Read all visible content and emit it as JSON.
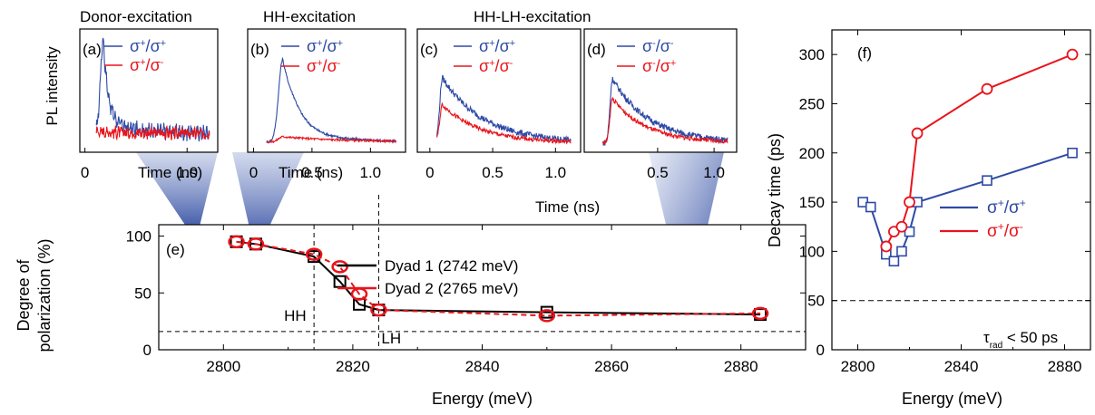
{
  "colors": {
    "blue": "#2e4aa5",
    "red": "#e8141b",
    "black": "#000000"
  },
  "panel_titles": [
    "Donor-excitation",
    "HH-excitation",
    "HH-LH-excitation"
  ],
  "pl_ylabel": "PL intensity",
  "chart_data": [
    {
      "id": "a",
      "type": "line",
      "panel_label": "(a)",
      "xlim": [
        -0.05,
        1.3
      ],
      "xticks": [
        {
          "v": 0,
          "t": "0"
        },
        {
          "v": 1.0,
          "t": "1.0"
        }
      ],
      "xlabel": "Time (ns)",
      "series": [
        {
          "name": "σ⁺/σ⁺",
          "color": "blue",
          "t_peak": 0.18,
          "amp": 0.93,
          "rise": 0.04,
          "decay": 0.05,
          "tail": 0.09,
          "tail_decay": 0.6,
          "base": 0.1,
          "noise": 0.05,
          "osc": 0.04
        },
        {
          "name": "σ⁺/σ⁻",
          "color": "red",
          "t_peak": 0.1,
          "amp": 0.03,
          "rise": 0.04,
          "decay": 1.0,
          "tail": 0,
          "tail_decay": 1,
          "base": 0.1,
          "noise": 0.05,
          "osc": 0.02
        }
      ]
    },
    {
      "id": "b",
      "type": "line",
      "panel_label": "(b)",
      "xlim": [
        -0.05,
        1.3
      ],
      "xticks": [
        {
          "v": 0,
          "t": "0"
        },
        {
          "v": 0.5,
          "t": "0.5"
        },
        {
          "v": 1.0,
          "t": "1.0"
        }
      ],
      "xlabel": "Time (ns)",
      "series": [
        {
          "name": "σ⁺/σ⁺",
          "color": "blue",
          "t_peak": 0.25,
          "amp": 0.8,
          "rise": 0.05,
          "decay": 0.12,
          "tail": 0.1,
          "tail_decay": 0.4,
          "base": 0.03,
          "noise": 0.012,
          "osc": 0
        },
        {
          "name": "σ⁺/σ⁻",
          "color": "red",
          "t_peak": 0.25,
          "amp": 0.05,
          "rise": 0.05,
          "decay": 0.5,
          "tail": 0,
          "tail_decay": 1,
          "base": 0.03,
          "noise": 0.01,
          "osc": 0
        }
      ]
    },
    {
      "id": "c",
      "type": "line",
      "panel_label": "(c)",
      "xlim": [
        -0.1,
        1.2
      ],
      "xticks": [
        {
          "v": 0,
          "t": "0"
        },
        {
          "v": 0.5,
          "t": "0.5"
        },
        {
          "v": 1.0,
          "t": "1.0"
        }
      ],
      "xlabel": "Time (ns)",
      "series": [
        {
          "name": "σ⁺/σ⁺",
          "color": "blue",
          "t_peak": 0.1,
          "amp": 0.63,
          "rise": 0.03,
          "decay": 0.33,
          "tail": 0,
          "tail_decay": 1,
          "base": 0.02,
          "noise": 0.03,
          "osc": 0
        },
        {
          "name": "σ⁺/σ⁻",
          "color": "red",
          "t_peak": 0.1,
          "amp": 0.37,
          "rise": 0.03,
          "decay": 0.3,
          "tail": 0,
          "tail_decay": 1,
          "base": 0.02,
          "noise": 0.02,
          "osc": 0
        }
      ]
    },
    {
      "id": "d",
      "type": "line",
      "panel_label": "(d)",
      "xlim": [
        -0.15,
        1.2
      ],
      "xticks": [
        {
          "v": 0.5,
          "t": "0.5"
        },
        {
          "v": 1.0,
          "t": "1.0"
        }
      ],
      "xlabel": "",
      "series": [
        {
          "name": "σ⁻/σ⁻",
          "color": "blue",
          "t_peak": 0.1,
          "amp": 0.62,
          "rise": 0.03,
          "decay": 0.33,
          "tail": 0,
          "tail_decay": 1,
          "base": 0.02,
          "noise": 0.03,
          "osc": 0
        },
        {
          "name": "σ⁻/σ⁺",
          "color": "red",
          "t_peak": 0.1,
          "amp": 0.43,
          "rise": 0.03,
          "decay": 0.3,
          "tail": 0,
          "tail_decay": 1,
          "base": 0.02,
          "noise": 0.02,
          "osc": 0
        }
      ]
    },
    {
      "id": "e",
      "type": "scatter",
      "panel_label": "(e)",
      "xlim": [
        2790,
        2890
      ],
      "ylim": [
        0,
        110
      ],
      "xticks": [
        2800,
        2820,
        2840,
        2860,
        2880
      ],
      "yticks": [
        0,
        50,
        100
      ],
      "xlabel": "Energy (meV)",
      "ylabel": [
        "Degree of",
        "polarization (%)"
      ],
      "series": [
        {
          "name": "Dyad 1 (2742 meV)",
          "color": "black",
          "marker": "square",
          "line": "solid",
          "x": [
            2802,
            2805,
            2814,
            2818,
            2821,
            2824,
            2850,
            2883
          ],
          "y": [
            95,
            93,
            82,
            60,
            40,
            35,
            33,
            31
          ]
        },
        {
          "name": "Dyad 2 (2765 meV)",
          "color": "red",
          "marker": "circle",
          "line": "dashed",
          "x": [
            2802,
            2805,
            2814,
            2818,
            2821,
            2824,
            2850,
            2883
          ],
          "y": [
            95,
            93,
            84,
            73,
            49,
            35,
            30,
            32
          ]
        }
      ],
      "vlines": [
        {
          "x": 2814,
          "label": "HH"
        },
        {
          "x": 2824,
          "label": "LH"
        }
      ],
      "hline": 16
    },
    {
      "id": "f",
      "type": "scatter",
      "panel_label": "(f)",
      "xlim": [
        2790,
        2890
      ],
      "ylim": [
        0,
        325
      ],
      "xticks": [
        2800,
        2840,
        2880
      ],
      "yticks": [
        0,
        50,
        100,
        150,
        200,
        250,
        300
      ],
      "xlabel": "Energy (meV)",
      "ylabel": "Decay time (ps)",
      "series": [
        {
          "name": "σ⁺/σ⁺",
          "color": "blue",
          "marker": "square",
          "x": [
            2802,
            2805,
            2811,
            2814,
            2817,
            2820,
            2823,
            2850,
            2883
          ],
          "y": [
            150,
            145,
            97,
            90,
            100,
            120,
            150,
            172,
            200
          ]
        },
        {
          "name": "σ⁺/σ⁻",
          "color": "red",
          "marker": "circle",
          "x": [
            2811,
            2814,
            2817,
            2820,
            2823,
            2850,
            2883
          ],
          "y": [
            105,
            120,
            125,
            150,
            220,
            265,
            300
          ]
        }
      ],
      "hline": 50,
      "hline_label": "τ",
      "hline_label_sub": "rad",
      "hline_label_rest": " < 50 ps"
    }
  ]
}
